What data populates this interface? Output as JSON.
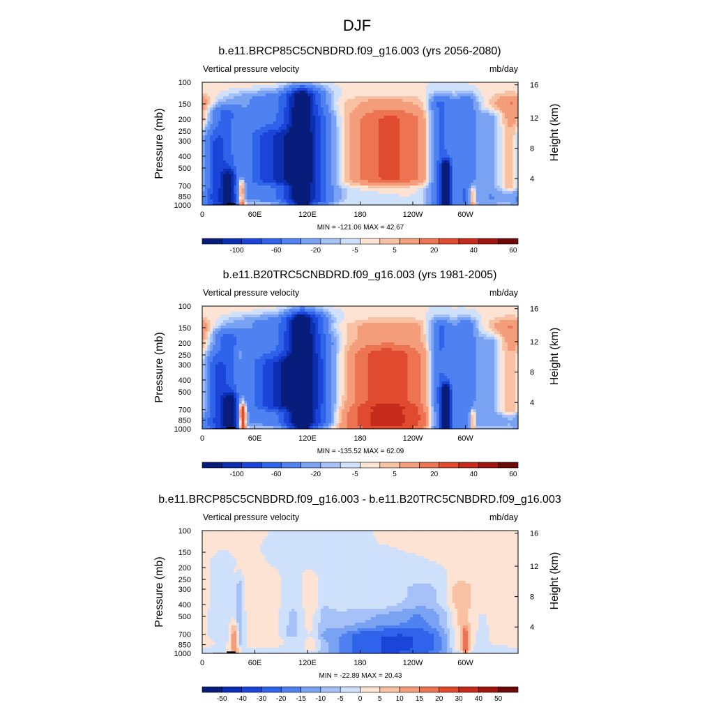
{
  "figure_title": "DJF",
  "chart_data": [
    {
      "type": "heatmap",
      "title": "b.e11.BRCP85C5CNBDRD.f09_g16.003 (yrs 2056-2080)",
      "left_string": "Vertical pressure velocity",
      "right_string": "mb/day",
      "ylabel": "Pressure (mb)",
      "y2label": "Height (km)",
      "x_ticks": [
        "0",
        "60E",
        "120E",
        "180",
        "120W",
        "60W"
      ],
      "y_ticks": [
        "100",
        "150",
        "200",
        "250",
        "300",
        "400",
        "500",
        "700",
        "850",
        "1000"
      ],
      "y2_ticks": [
        "16",
        "12",
        "8",
        "4"
      ],
      "stats": "MIN = -121.06  MAX =  42.67",
      "colorbar_labels": [
        "-100",
        "-60",
        "-20",
        "-5",
        "5",
        "20",
        "40",
        "60"
      ],
      "features": [
        {
          "lon": 5,
          "p0": 250,
          "p1": 1000,
          "w": 12,
          "v": -10
        },
        {
          "lon": 13,
          "p0": 300,
          "p1": 950,
          "w": 8,
          "v": -30
        },
        {
          "lon": 25,
          "p0": 180,
          "p1": 1000,
          "w": 12,
          "v": -40
        },
        {
          "lon": 30,
          "p0": 600,
          "p1": 1000,
          "w": 6,
          "v": -70
        },
        {
          "lon": 40,
          "p0": 250,
          "p1": 800,
          "w": 4,
          "v": 10
        },
        {
          "lon": 45,
          "p0": 700,
          "p1": 1000,
          "w": 3,
          "v": 40
        },
        {
          "lon": 88,
          "p0": 140,
          "p1": 870,
          "w": 36,
          "v": -35
        },
        {
          "lon": 85,
          "p0": 280,
          "p1": 620,
          "w": 20,
          "v": -45
        },
        {
          "lon": 107,
          "p0": 130,
          "p1": 1000,
          "w": 10,
          "v": -60
        },
        {
          "lon": 115,
          "p0": 130,
          "p1": 1000,
          "w": 7,
          "v": -50
        },
        {
          "lon": 128,
          "p0": 130,
          "p1": 920,
          "w": 10,
          "v": -40
        },
        {
          "lon": 140,
          "p0": 200,
          "p1": 900,
          "w": 12,
          "v": -15
        },
        {
          "lon": 205,
          "p0": 150,
          "p1": 650,
          "w": 50,
          "v": 12
        },
        {
          "lon": 215,
          "p0": 200,
          "p1": 600,
          "w": 30,
          "v": 20
        },
        {
          "lon": 272,
          "p0": 150,
          "p1": 1000,
          "w": 9,
          "v": -50
        },
        {
          "lon": 278,
          "p0": 500,
          "p1": 1000,
          "w": 4,
          "v": -100
        },
        {
          "lon": 300,
          "p0": 150,
          "p1": 950,
          "w": 9,
          "v": -40
        },
        {
          "lon": 308,
          "p0": 800,
          "p1": 1000,
          "w": 3,
          "v": 40
        },
        {
          "lon": 330,
          "p0": 200,
          "p1": 900,
          "w": 12,
          "v": -20
        },
        {
          "lon": 352,
          "p0": 150,
          "p1": 700,
          "w": 15,
          "v": 20
        },
        {
          "lon": 60,
          "p0": 100,
          "p1": 150,
          "w": 60,
          "v": 3
        }
      ]
    },
    {
      "type": "heatmap",
      "title": "b.e11.B20TRC5CNBDRD.f09_g16.003 (yrs 1981-2005)",
      "left_string": "Vertical pressure velocity",
      "right_string": "mb/day",
      "ylabel": "Pressure (mb)",
      "y2label": "Height (km)",
      "x_ticks": [
        "0",
        "60E",
        "120E",
        "180",
        "120W",
        "60W"
      ],
      "y_ticks": [
        "100",
        "150",
        "200",
        "250",
        "300",
        "400",
        "500",
        "700",
        "850",
        "1000"
      ],
      "y2_ticks": [
        "16",
        "12",
        "8",
        "4"
      ],
      "stats": "MIN = -135.52  MAX =  62.09",
      "colorbar_labels": [
        "-100",
        "-60",
        "-20",
        "-5",
        "5",
        "20",
        "40",
        "60"
      ],
      "features": [
        {
          "lon": 5,
          "p0": 250,
          "p1": 1000,
          "w": 12,
          "v": -10
        },
        {
          "lon": 15,
          "p0": 300,
          "p1": 950,
          "w": 8,
          "v": -30
        },
        {
          "lon": 28,
          "p0": 180,
          "p1": 1000,
          "w": 12,
          "v": -40
        },
        {
          "lon": 32,
          "p0": 600,
          "p1": 1000,
          "w": 6,
          "v": -80
        },
        {
          "lon": 43,
          "p0": 250,
          "p1": 800,
          "w": 4,
          "v": 15
        },
        {
          "lon": 46,
          "p0": 700,
          "p1": 1000,
          "w": 3,
          "v": 60
        },
        {
          "lon": 92,
          "p0": 140,
          "p1": 870,
          "w": 38,
          "v": -35
        },
        {
          "lon": 90,
          "p0": 300,
          "p1": 640,
          "w": 20,
          "v": -50
        },
        {
          "lon": 107,
          "p0": 130,
          "p1": 1000,
          "w": 10,
          "v": -60
        },
        {
          "lon": 115,
          "p0": 130,
          "p1": 1000,
          "w": 7,
          "v": -55
        },
        {
          "lon": 128,
          "p0": 130,
          "p1": 920,
          "w": 10,
          "v": -45
        },
        {
          "lon": 140,
          "p0": 200,
          "p1": 900,
          "w": 12,
          "v": -15
        },
        {
          "lon": 210,
          "p0": 150,
          "p1": 900,
          "w": 55,
          "v": 15
        },
        {
          "lon": 210,
          "p0": 250,
          "p1": 650,
          "w": 30,
          "v": 22
        },
        {
          "lon": 210,
          "p0": 800,
          "p1": 1000,
          "w": 40,
          "v": 30
        },
        {
          "lon": 272,
          "p0": 150,
          "p1": 1000,
          "w": 9,
          "v": -50
        },
        {
          "lon": 278,
          "p0": 500,
          "p1": 1000,
          "w": 4,
          "v": -110
        },
        {
          "lon": 300,
          "p0": 150,
          "p1": 950,
          "w": 9,
          "v": -40
        },
        {
          "lon": 308,
          "p0": 800,
          "p1": 1000,
          "w": 3,
          "v": 35
        },
        {
          "lon": 330,
          "p0": 200,
          "p1": 900,
          "w": 12,
          "v": -20
        },
        {
          "lon": 352,
          "p0": 150,
          "p1": 700,
          "w": 15,
          "v": 20
        },
        {
          "lon": 60,
          "p0": 100,
          "p1": 150,
          "w": 60,
          "v": 3
        }
      ]
    },
    {
      "type": "heatmap",
      "title": "b.e11.BRCP85C5CNBDRD.f09_g16.003 - b.e11.B20TRC5CNBDRD.f09_g16.003",
      "left_string": "Vertical pressure velocity",
      "right_string": "mb/day",
      "ylabel": "Pressure (mb)",
      "y2label": "Height (km)",
      "x_ticks": [
        "0",
        "60E",
        "120E",
        "180",
        "120W",
        "60W"
      ],
      "y_ticks": [
        "100",
        "150",
        "200",
        "250",
        "300",
        "400",
        "500",
        "700",
        "850",
        "1000"
      ],
      "y2_ticks": [
        "16",
        "12",
        "8",
        "4"
      ],
      "stats": "MIN = -22.89  MAX =  20.43",
      "colorbar_labels": [
        "-50",
        "-40",
        "-30",
        "-20",
        "-15",
        "-10",
        "-5",
        "0",
        "5",
        "10",
        "15",
        "20",
        "30",
        "40",
        "50"
      ],
      "features": [
        {
          "lon": 20,
          "p0": 200,
          "p1": 700,
          "w": 6,
          "v": -5
        },
        {
          "lon": 37,
          "p0": 700,
          "p1": 950,
          "w": 3,
          "v": 15
        },
        {
          "lon": 43,
          "p0": 300,
          "p1": 800,
          "w": 3,
          "v": -10
        },
        {
          "lon": 75,
          "p0": 250,
          "p1": 800,
          "w": 15,
          "v": 5
        },
        {
          "lon": 100,
          "p0": 200,
          "p1": 700,
          "w": 10,
          "v": -5
        },
        {
          "lon": 125,
          "p0": 250,
          "p1": 900,
          "w": 8,
          "v": 8
        },
        {
          "lon": 135,
          "p0": 200,
          "p1": 700,
          "w": 10,
          "v": -5
        },
        {
          "lon": 210,
          "p0": 500,
          "p1": 1000,
          "w": 60,
          "v": -10
        },
        {
          "lon": 210,
          "p0": 750,
          "p1": 1000,
          "w": 40,
          "v": -20
        },
        {
          "lon": 250,
          "p0": 300,
          "p1": 900,
          "w": 20,
          "v": -7
        },
        {
          "lon": 295,
          "p0": 300,
          "p1": 900,
          "w": 10,
          "v": 10
        },
        {
          "lon": 300,
          "p0": 700,
          "p1": 950,
          "w": 3,
          "v": 15
        },
        {
          "lon": 340,
          "p0": 150,
          "p1": 800,
          "w": 20,
          "v": 2
        }
      ]
    }
  ]
}
